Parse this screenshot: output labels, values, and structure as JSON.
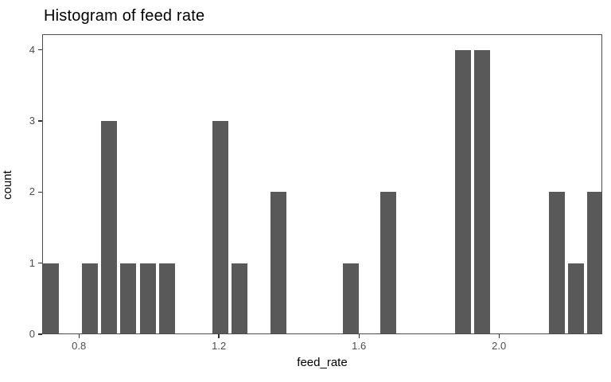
{
  "title": "Histogram of feed rate",
  "chart_data": {
    "type": "bar",
    "subtype": "histogram",
    "title": "Histogram of feed rate",
    "xlabel": "feed_rate",
    "ylabel": "count",
    "bin_centers": [
      0.718,
      0.828,
      0.883,
      0.939,
      0.994,
      1.05,
      1.201,
      1.257,
      1.367,
      1.574,
      1.682,
      1.895,
      1.95,
      2.162,
      2.217,
      2.273
    ],
    "counts": [
      1,
      1,
      3,
      1,
      1,
      1,
      3,
      1,
      2,
      1,
      2,
      4,
      4,
      2,
      1,
      2
    ],
    "binwidth": 0.0555,
    "total_n": 30,
    "x_ticks": [
      0.8,
      1.2,
      1.6,
      2.0
    ],
    "x_tick_labels": [
      "0.8",
      "1.2",
      "1.6",
      "2.0"
    ],
    "y_ticks": [
      0,
      1,
      2,
      3,
      4
    ],
    "y_tick_labels": [
      "0",
      "1",
      "2",
      "3",
      "4"
    ],
    "xlim": [
      0.695,
      2.295
    ],
    "ylim": [
      0,
      4.22
    ],
    "grid": "off",
    "legend": "none",
    "colors": {
      "bar_fill": "#595959",
      "bar_border": "#ffffff",
      "panel_border": "#4d4d4d",
      "tick_mark": "#333333",
      "tick_label": "#4d4d4d",
      "title_text": "#000000",
      "axis_title_text": "#000000",
      "background": "#ffffff"
    }
  }
}
